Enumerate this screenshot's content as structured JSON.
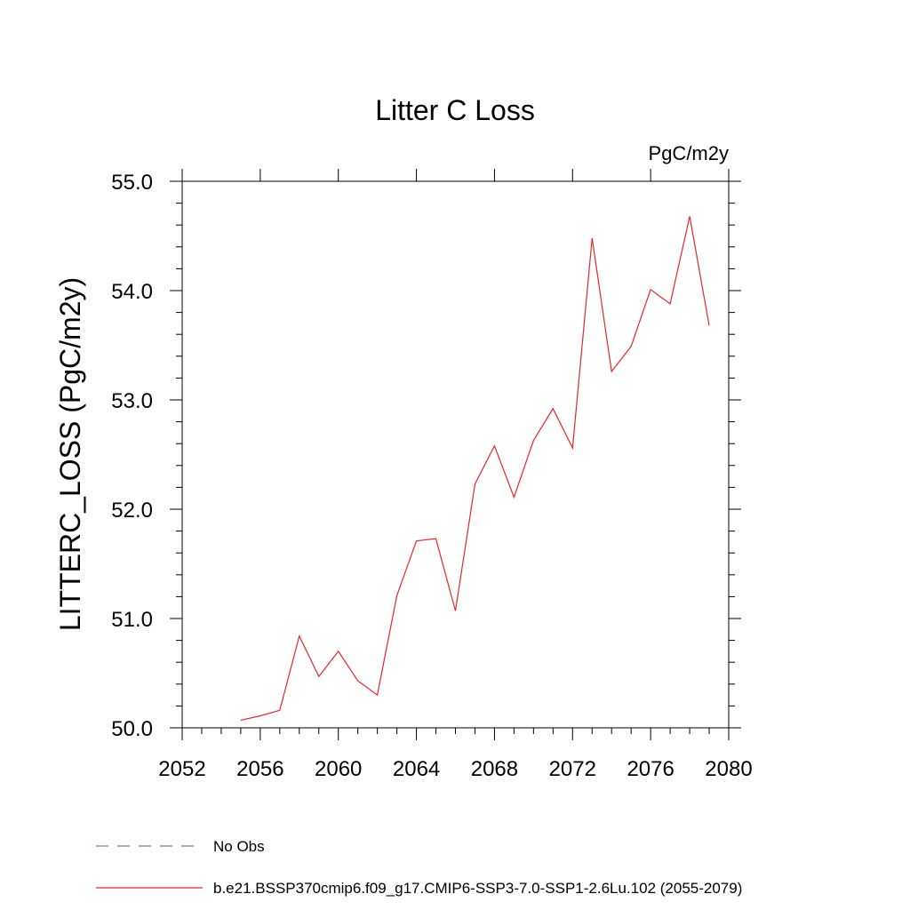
{
  "chart_data": {
    "type": "line",
    "title": "Litter C Loss",
    "units": "PgC/m2y",
    "ylabel": "LITTERC_LOSS  (PgC/m2y)",
    "xlabel": "",
    "xlim": [
      2052,
      2080
    ],
    "ylim": [
      50.0,
      55.0
    ],
    "x_ticks": [
      2052,
      2056,
      2060,
      2064,
      2068,
      2072,
      2076,
      2080
    ],
    "x_tick_labels": [
      "2052",
      "2056",
      "2060",
      "2064",
      "2068",
      "2072",
      "2076",
      "2080"
    ],
    "y_ticks": [
      50.0,
      51.0,
      52.0,
      53.0,
      54.0,
      55.0
    ],
    "y_tick_labels": [
      "50.0",
      "51.0",
      "52.0",
      "53.0",
      "54.0",
      "55.0"
    ],
    "grid": false,
    "legend_placement": "bottom-left",
    "series": [
      {
        "name": "No Obs",
        "style": "dashed",
        "color": "#7b6fb0",
        "x": [],
        "y": []
      },
      {
        "name": "b.e21.BSSP370cmip6.f09_g17.CMIP6-SSP3-7.0-SSP1-2.6Lu.102 (2055-2079)",
        "style": "solid",
        "color": "#e8262a",
        "x": [
          2055,
          2056,
          2057,
          2058,
          2059,
          2060,
          2061,
          2062,
          2063,
          2064,
          2065,
          2066,
          2067,
          2068,
          2069,
          2070,
          2071,
          2072,
          2073,
          2074,
          2075,
          2076,
          2077,
          2078,
          2079
        ],
        "y": [
          50.07,
          50.11,
          50.16,
          50.84,
          50.47,
          50.7,
          50.43,
          50.3,
          51.21,
          51.71,
          51.73,
          51.07,
          52.23,
          52.58,
          52.11,
          52.63,
          52.92,
          52.56,
          54.48,
          53.26,
          53.49,
          54.01,
          53.88,
          54.68,
          53.68
        ]
      }
    ]
  }
}
